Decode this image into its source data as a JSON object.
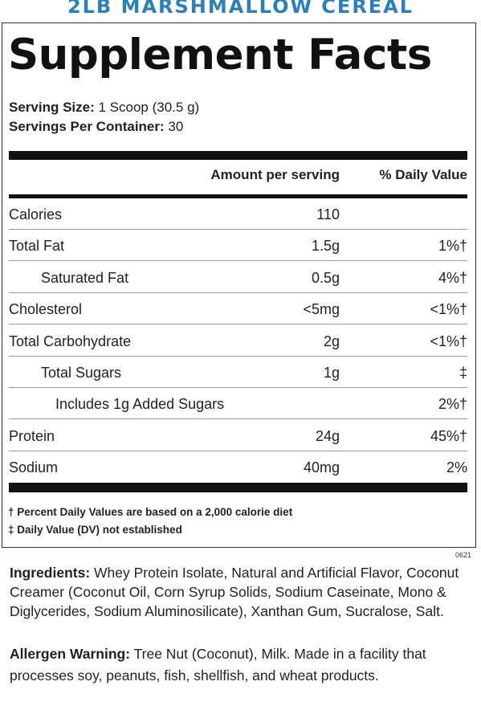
{
  "product_title": "2LB MARSHMALLOW CEREAL",
  "facts_title": "Supplement Facts",
  "serving_size": {
    "label": "Serving Size:",
    "value": "1 Scoop (30.5 g)"
  },
  "servings_per_container": {
    "label": "Servings Per Container:",
    "value": "30"
  },
  "headers": {
    "amount": "Amount per serving",
    "daily_value": "% Daily Value"
  },
  "nutrients": [
    {
      "name": "Calories",
      "amount": "110",
      "dv": ""
    },
    {
      "name": "Total Fat",
      "amount": "1.5g",
      "dv": "1%†"
    },
    {
      "name": "Saturated Fat",
      "amount": "0.5g",
      "dv": "4%†"
    },
    {
      "name": "Cholesterol",
      "amount": "<5mg",
      "dv": "<1%†"
    },
    {
      "name": "Total Carbohydrate",
      "amount": "2g",
      "dv": "<1%†"
    },
    {
      "name": "Total Sugars",
      "amount": "1g",
      "dv": "‡"
    },
    {
      "name": "Includes 1g Added Sugars",
      "amount": "",
      "dv": "2%†"
    },
    {
      "name": "Protein",
      "amount": "24g",
      "dv": "45%†"
    },
    {
      "name": "Sodium",
      "amount": "40mg",
      "dv": "2%"
    }
  ],
  "footnotes": [
    "† Percent Daily Values are based on a 2,000 calorie diet",
    "‡ Daily Value (DV) not established"
  ],
  "label_code": "0621",
  "ingredients": {
    "label": "Ingredients:",
    "text": " Whey Protein Isolate, Natural and Artificial Flavor, Coconut Creamer (Coconut Oil, Corn Syrup Solids, Sodium Caseinate, Mono & Diglycerides, Sodium Aluminosilicate), Xanthan Gum, Sucralose, Salt."
  },
  "allergen": {
    "label": "Allergen Warning:",
    "text": " Tree Nut (Coconut), Milk. Made in a facility that processes soy, peanuts, fish, shellfish, and wheat products."
  },
  "colors": {
    "title_blue": "#2a7fbf",
    "rule_black": "#111111"
  }
}
